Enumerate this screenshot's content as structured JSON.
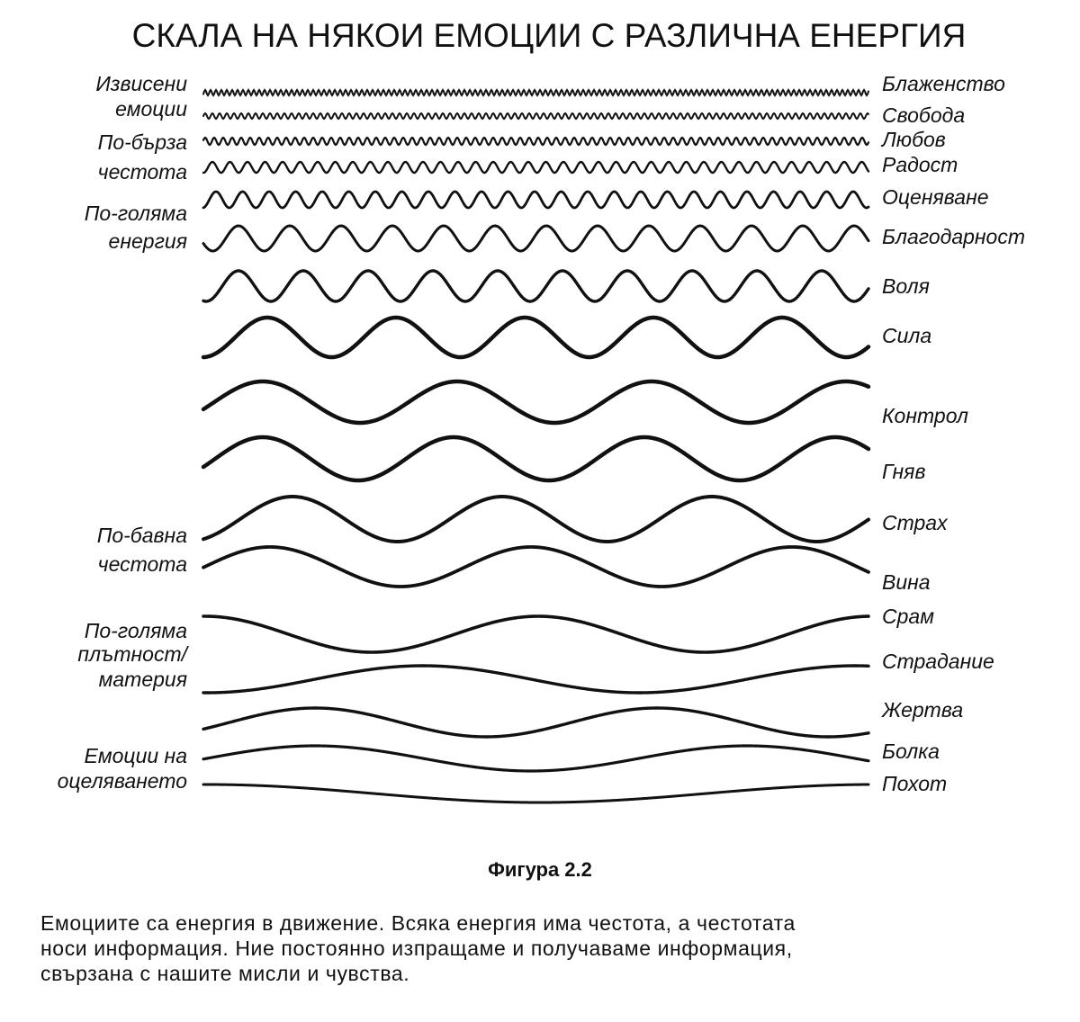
{
  "title": "СКАЛА НА НЯКОИ ЕМОЦИИ С РАЗЛИЧНА ЕНЕРГИЯ",
  "left_labels": [
    "Извисени",
    "емоции",
    "По-бърза",
    "честота",
    "По-голяма",
    "енергия",
    "По-бавна",
    "честота",
    "По-голяма",
    "плътност/",
    "материя",
    "Емоции на",
    "оцеляването"
  ],
  "right_labels": [
    "Блаженство",
    "Свобода",
    "Любов",
    "Радост",
    "Оценяване",
    "Благодарност",
    "Воля",
    "Сила",
    "Контрол",
    "Гняв",
    "Страх",
    "Вина",
    "Срам",
    "Страдание",
    "Жертва",
    "Болка",
    "Похот"
  ],
  "figure_caption": "Фигура 2.2",
  "description": [
    "Емоциите са енергия в движение. Всяка енергия има честота, а честотата",
    "носи информация. Ние постоянно изпращаме и получаваме информация,",
    "свързана с нашите мисли и чувства."
  ]
}
